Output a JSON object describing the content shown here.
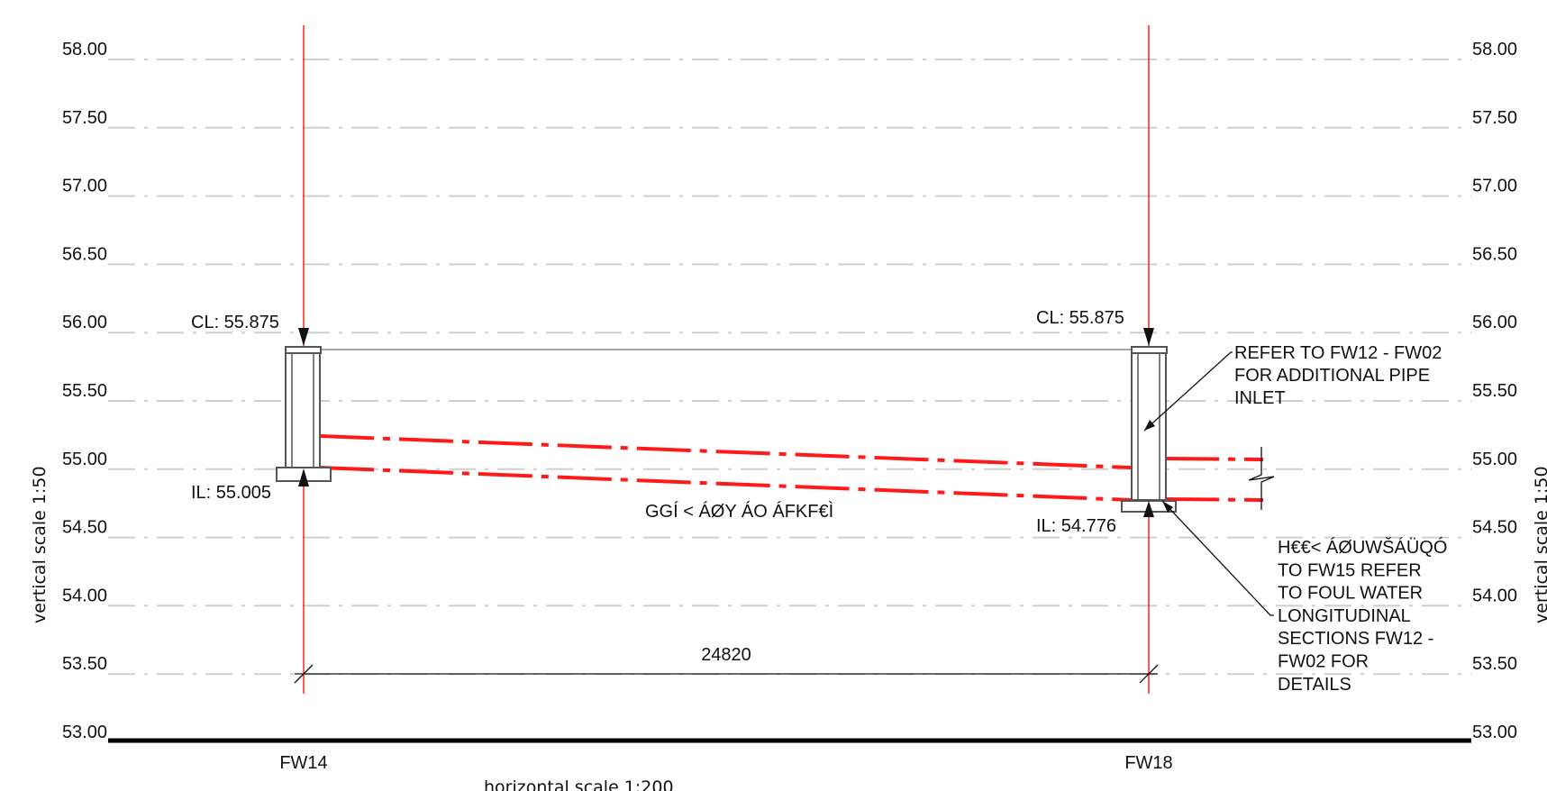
{
  "levels": [
    {
      "value": 58.0,
      "label": "58.00"
    },
    {
      "value": 57.5,
      "label": "57.50"
    },
    {
      "value": 57.0,
      "label": "57.00"
    },
    {
      "value": 56.5,
      "label": "56.50"
    },
    {
      "value": 56.0,
      "label": "56.00"
    },
    {
      "value": 55.5,
      "label": "55.50"
    },
    {
      "value": 55.0,
      "label": "55.00"
    },
    {
      "value": 54.5,
      "label": "54.50"
    },
    {
      "value": 54.0,
      "label": "54.00"
    },
    {
      "value": 53.5,
      "label": "53.50"
    },
    {
      "value": 53.0,
      "label": "53.00"
    }
  ],
  "manholes": {
    "left": {
      "name": "FW14",
      "cover_label": "CL: 55.875",
      "invert_label": "IL: 55.005"
    },
    "right": {
      "name": "FW18",
      "cover_label": "CL: 55.875",
      "invert_label": "IL: 54.776"
    }
  },
  "pipe_label": "GGÍ < ÁØY ÁO ÁFKF€Ì",
  "dimension_label": "24820",
  "note_inlet": [
    "REFER TO FW12 - FW02",
    "FOR ADDITIONAL PIPE",
    "INLET"
  ],
  "note_outlet": [
    "H€€< ÁØUWŠÁÜQÓ",
    "TO FW15 REFER",
    "TO FOUL WATER",
    "LONGITUDINAL",
    "SECTIONS FW12 -",
    "FW02 FOR",
    "DETAILS"
  ],
  "vertical_scale": "vertical scale 1:50",
  "horizontal_scale": "horizontal scale 1:200",
  "colors": {
    "pipe": "#ff1a1a",
    "chainage_line": "#ff0000",
    "grid": "#cfcfcf"
  }
}
